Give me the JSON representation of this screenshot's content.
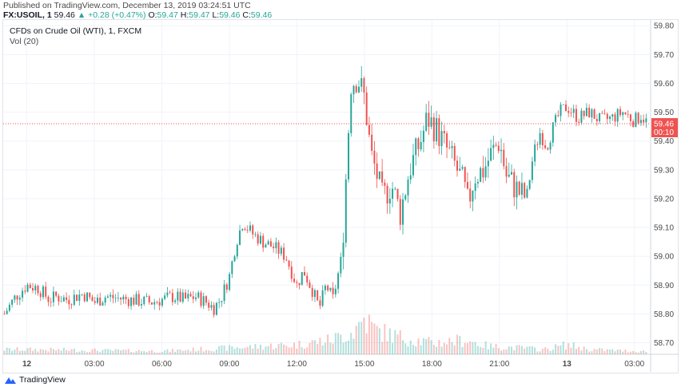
{
  "header": {
    "published": "Published on TradingView.com, December 13, 2019 03:24:51 UTC",
    "symbol": "FX:USOIL, 1",
    "last": "59.46",
    "change": "▲ +0.28 (+0.47%)",
    "o_label": "O:",
    "o_value": "59.47",
    "h_label": "H:",
    "h_value": "59.47",
    "l_label": "L:",
    "l_value": "59.46",
    "c_label": "C:",
    "c_value": "59.46"
  },
  "legend": {
    "title": "CFDs on Crude Oil (WTI), 1, FXCM",
    "volume": "Vol (20)"
  },
  "footer": {
    "brand": "TradingView"
  },
  "colors": {
    "up": "#26a69a",
    "down": "#ef5350",
    "price_line": "#ef5350",
    "grid": "#f0f3fa"
  },
  "chart_data": {
    "type": "candlestick",
    "symbol": "FX:USOIL",
    "interval": "1",
    "y_ticks": [
      "59.80",
      "59.70",
      "59.60",
      "59.50",
      "59.40",
      "59.30",
      "59.20",
      "59.10",
      "59.00",
      "58.90",
      "58.80",
      "58.70"
    ],
    "ylim": [
      58.66,
      59.82
    ],
    "x_ticks": [
      "12",
      "03:00",
      "06:00",
      "09:00",
      "12:00",
      "15:00",
      "18:00",
      "21:00",
      "13",
      "03:00"
    ],
    "x_tick_hours": [
      0,
      3,
      6,
      9,
      12,
      15,
      18,
      21,
      24,
      27
    ],
    "xlim_hours": [
      -1.05,
      27.72
    ],
    "last_price": {
      "value": 59.46,
      "label": "59.46",
      "countdown": "00:10"
    },
    "price_path_hours": [
      -1.0,
      -0.5,
      0,
      0.5,
      1.0,
      1.3,
      1.8,
      2.5,
      3.0,
      3.5,
      4.5,
      5.5,
      6.5,
      7.0,
      7.5,
      8.0,
      8.3,
      8.6,
      9.0,
      9.3,
      9.6,
      10.0,
      10.5,
      11.0,
      11.5,
      12.0,
      12.3,
      12.7,
      13.0,
      13.3,
      13.6,
      14.0,
      14.4,
      14.7,
      15.0,
      15.3,
      15.5,
      15.8,
      16.2,
      16.6,
      17.0,
      17.5,
      17.8,
      18.2,
      18.6,
      19.0,
      19.4,
      19.6,
      19.9,
      20.3,
      20.6,
      21.0,
      21.3,
      21.6,
      21.9,
      22.2,
      22.5,
      22.8,
      23.1,
      23.4,
      23.7,
      24.0,
      24.5,
      25.0,
      25.5,
      26.0,
      26.5,
      27.0,
      27.3,
      27.6
    ],
    "price_path_values": [
      58.8,
      58.86,
      58.9,
      58.89,
      58.85,
      58.86,
      58.85,
      58.87,
      58.84,
      58.86,
      58.85,
      58.84,
      58.86,
      58.85,
      58.86,
      58.84,
      58.82,
      58.85,
      58.93,
      59.05,
      59.12,
      59.08,
      59.05,
      59.03,
      59.0,
      58.9,
      58.95,
      58.88,
      58.82,
      58.9,
      58.85,
      59.0,
      59.6,
      59.62,
      59.55,
      59.35,
      59.3,
      59.2,
      59.25,
      59.15,
      59.3,
      59.4,
      59.48,
      59.44,
      59.38,
      59.32,
      59.25,
      59.18,
      59.28,
      59.3,
      59.35,
      59.4,
      59.28,
      59.25,
      59.22,
      59.2,
      59.35,
      59.43,
      59.38,
      59.45,
      59.5,
      59.52,
      59.48,
      59.5,
      59.47,
      59.48,
      59.5,
      59.47,
      59.49,
      59.46
    ],
    "volume_hours": [
      0,
      3,
      6,
      9,
      12,
      13.5,
      14.5,
      15.0,
      15.5,
      16.5,
      18,
      19.5,
      20.5,
      22,
      23,
      24,
      25,
      26,
      27
    ],
    "volume_values": [
      6,
      5,
      4,
      8,
      12,
      18,
      28,
      45,
      30,
      22,
      14,
      18,
      10,
      8,
      6,
      12,
      6,
      5,
      4
    ]
  }
}
